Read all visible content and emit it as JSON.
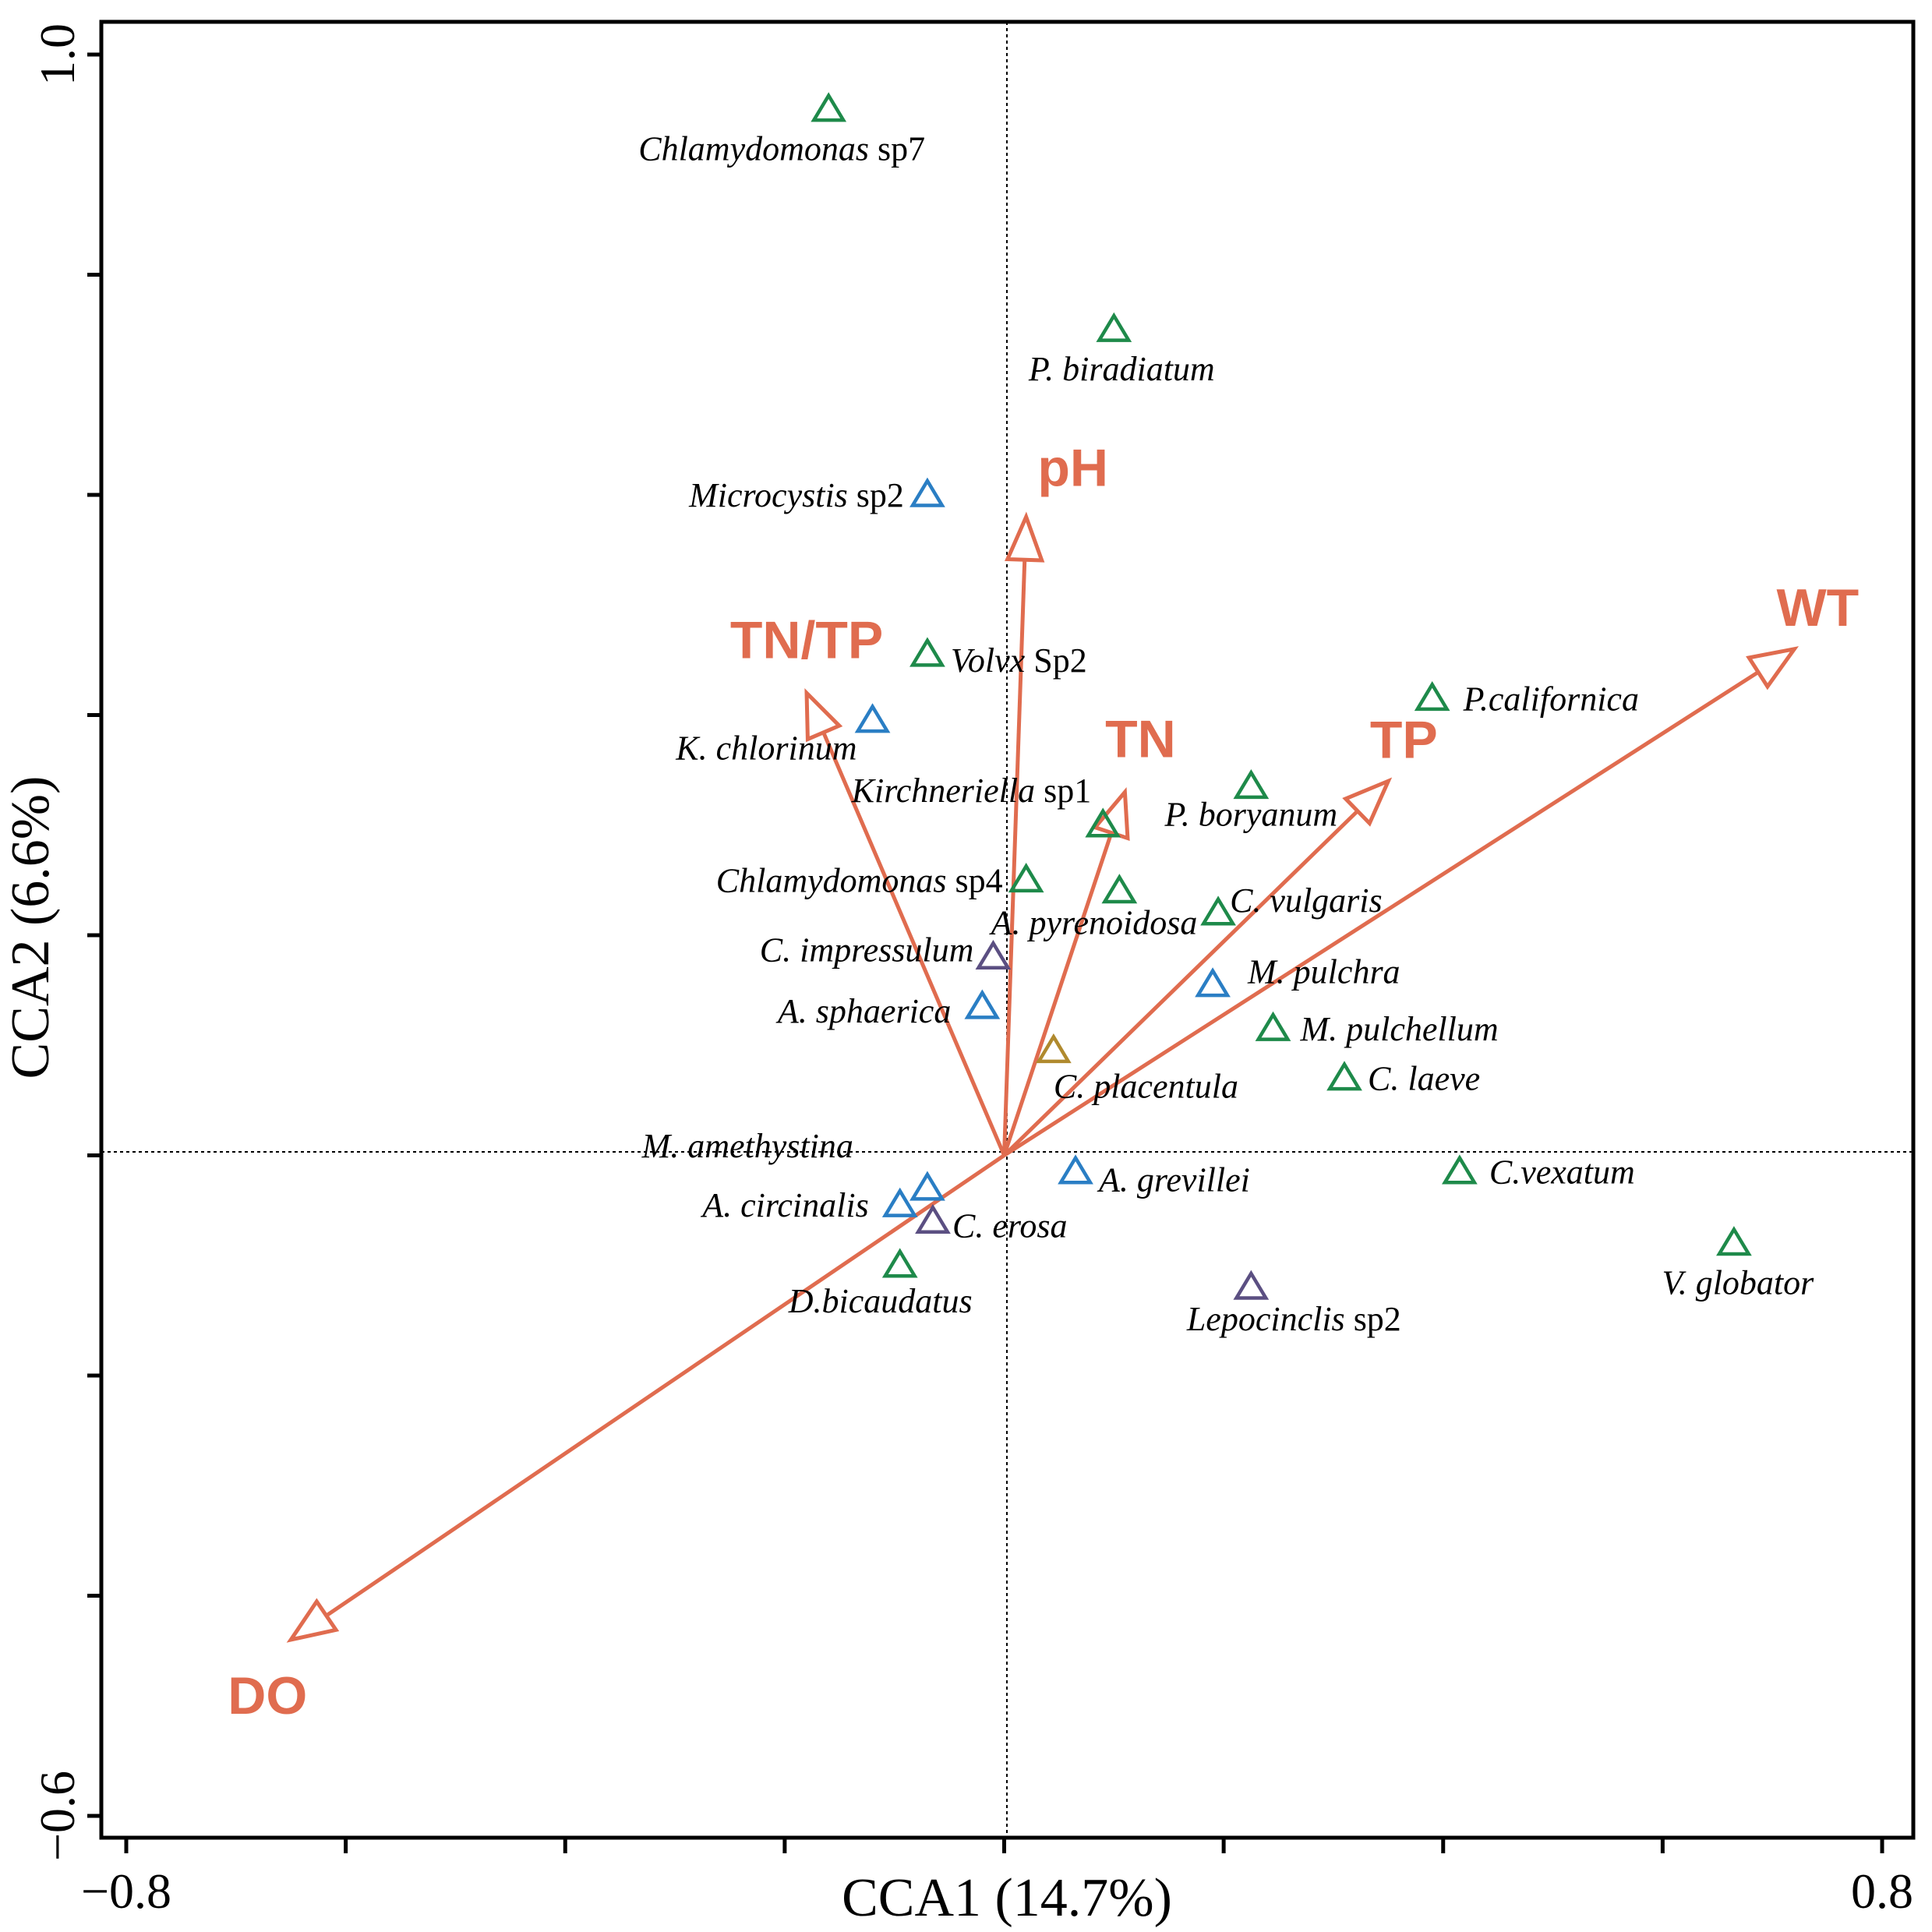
{
  "chart_data": {
    "type": "scatter",
    "title": "",
    "xlabel": "CCA1 (14.7%)",
    "ylabel": "CCA2 (6.6%)",
    "xlim": [
      -0.8,
      0.8
    ],
    "ylim": [
      -0.6,
      1.0
    ],
    "x_tick_labels": [
      "−0.8",
      "0.8"
    ],
    "y_tick_labels": [
      "1.0",
      "−0.6"
    ],
    "grid": false,
    "colors": {
      "arrow": "#e06c4f",
      "green": "#1e8a4a",
      "blue": "#2a7ec4",
      "purple": "#5b4f82",
      "gold": "#b08a2e"
    },
    "env_vectors": [
      {
        "label": "pH",
        "x": 0.02,
        "y": 0.58
      },
      {
        "label": "TN/TP",
        "x": -0.18,
        "y": 0.42
      },
      {
        "label": "TN",
        "x": 0.11,
        "y": 0.33
      },
      {
        "label": "TP",
        "x": 0.35,
        "y": 0.34
      },
      {
        "label": "WT",
        "x": 0.72,
        "y": 0.46
      },
      {
        "label": "DO",
        "x": -0.65,
        "y": -0.44
      }
    ],
    "species": [
      {
        "italic": "Chlamydomonas",
        "suffix": " sp7",
        "x": -0.16,
        "y": 0.95,
        "group": "green"
      },
      {
        "italic": "P. biradiatum",
        "suffix": "",
        "x": 0.1,
        "y": 0.75,
        "group": "green"
      },
      {
        "italic": "Microcystis",
        "suffix": " sp2",
        "x": -0.07,
        "y": 0.6,
        "group": "blue"
      },
      {
        "italic": "Volvx",
        "suffix": " Sp2",
        "x": -0.07,
        "y": 0.455,
        "group": "green"
      },
      {
        "italic": "K. chlorinum",
        "suffix": "",
        "x": -0.12,
        "y": 0.395,
        "group": "blue"
      },
      {
        "italic": "P.californica",
        "suffix": "",
        "x": 0.39,
        "y": 0.415,
        "group": "green"
      },
      {
        "italic": "P. boryanum",
        "suffix": "",
        "x": 0.225,
        "y": 0.335,
        "group": "green"
      },
      {
        "italic": "Kirchneriella",
        "suffix": " sp1",
        "x": 0.09,
        "y": 0.3,
        "group": "green"
      },
      {
        "italic": "Chlamydomonas",
        "suffix": " sp4",
        "x": 0.02,
        "y": 0.25,
        "group": "green"
      },
      {
        "italic": "A. pyrenoidosa",
        "suffix": "",
        "x": 0.105,
        "y": 0.24,
        "group": "green"
      },
      {
        "italic": "C. vulgaris",
        "suffix": "",
        "x": 0.195,
        "y": 0.22,
        "group": "green"
      },
      {
        "italic": "C. impressulum",
        "suffix": "",
        "x": -0.01,
        "y": 0.18,
        "group": "purple"
      },
      {
        "italic": "M. pulchra",
        "suffix": "",
        "x": 0.19,
        "y": 0.155,
        "group": "blue"
      },
      {
        "italic": "A. sphaerica",
        "suffix": "",
        "x": -0.02,
        "y": 0.135,
        "group": "blue"
      },
      {
        "italic": "M. pulchellum",
        "suffix": "",
        "x": 0.245,
        "y": 0.115,
        "group": "green"
      },
      {
        "italic": "C. placentula",
        "suffix": "",
        "x": 0.045,
        "y": 0.095,
        "group": "gold"
      },
      {
        "italic": "C. laeve",
        "suffix": "",
        "x": 0.31,
        "y": 0.07,
        "group": "green"
      },
      {
        "italic": "M. amethystina",
        "suffix": "",
        "x": -0.07,
        "y": -0.03,
        "group": "blue"
      },
      {
        "italic": "A. grevillei",
        "suffix": "",
        "x": 0.065,
        "y": -0.015,
        "group": "blue"
      },
      {
        "italic": "C.vexatum",
        "suffix": "",
        "x": 0.415,
        "y": -0.015,
        "group": "green"
      },
      {
        "italic": "A. circinalis",
        "suffix": "",
        "x": -0.095,
        "y": -0.045,
        "group": "blue"
      },
      {
        "italic": "C. erosa",
        "suffix": "",
        "x": -0.065,
        "y": -0.06,
        "group": "purple"
      },
      {
        "italic": "V. globator",
        "suffix": "",
        "x": 0.665,
        "y": -0.08,
        "group": "green"
      },
      {
        "italic": "D.bicaudatus",
        "suffix": "",
        "x": -0.095,
        "y": -0.1,
        "group": "green"
      },
      {
        "italic": "Lepocinclis",
        "suffix": " sp2",
        "x": 0.225,
        "y": -0.12,
        "group": "purple"
      }
    ]
  }
}
